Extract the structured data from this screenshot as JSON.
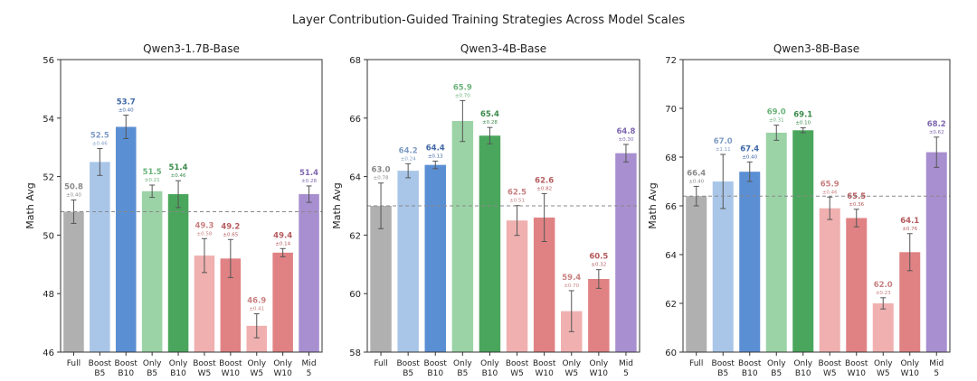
{
  "figure_title": "Layer Contribution-Guided Training Strategies Across Model Scales",
  "colors": {
    "Full": "#b0b0b0",
    "Boost B5": "#a9c6e8",
    "Boost B10": "#5b8fd4",
    "Only B5": "#9bd3a6",
    "Only B10": "#4aa65c",
    "Boost W5": "#f0b0b0",
    "Boost W10": "#e08284",
    "Only W5": "#f0b0b0",
    "Only W10": "#e08284",
    "Mid 5": "#a88fd0",
    "label_Full": "#8a8a8a",
    "label_Boost B5": "#7f9cc4",
    "label_Boost B10": "#3f67a6",
    "label_Only B5": "#6ab27a",
    "label_Only B10": "#3a8a4a",
    "label_Boost W5": "#c98080",
    "label_Boost W10": "#b55a5c",
    "label_Only W5": "#c98080",
    "label_Only W10": "#b55a5c",
    "label_Mid 5": "#7f68b0"
  },
  "chart_data": [
    {
      "type": "bar",
      "title": "Qwen3-1.7B-Base",
      "ylabel": "Math Avg",
      "xlabel": "",
      "categories": [
        "Full",
        "Boost\nB5",
        "Boost\nB10",
        "Only\nB5",
        "Only\nB10",
        "Boost\nW5",
        "Boost\nW10",
        "Only\nW5",
        "Only\nW10",
        "Mid\n5"
      ],
      "keys": [
        "Full",
        "Boost B5",
        "Boost B10",
        "Only B5",
        "Only B10",
        "Boost W5",
        "Boost W10",
        "Only W5",
        "Only W10",
        "Mid 5"
      ],
      "values": [
        50.8,
        52.5,
        53.7,
        51.5,
        51.4,
        49.3,
        49.2,
        46.9,
        49.4,
        51.4
      ],
      "errors": [
        0.4,
        0.46,
        0.4,
        0.21,
        0.46,
        0.58,
        0.65,
        0.41,
        0.14,
        0.28
      ],
      "value_labels": [
        "50.8",
        "52.5",
        "53.7",
        "51.5",
        "51.4",
        "49.3",
        "49.2",
        "46.9",
        "49.4",
        "51.4"
      ],
      "error_labels": [
        "±0.40",
        "±0.46",
        "±0.40",
        "±0.21",
        "±0.46",
        "±0.58",
        "±0.65",
        "±0.41",
        "±0.14",
        "±0.28"
      ],
      "ylim": [
        46,
        56
      ],
      "yticks": [
        46,
        48,
        50,
        52,
        54,
        56
      ],
      "baseline": 50.8
    },
    {
      "type": "bar",
      "title": "Qwen3-4B-Base",
      "ylabel": "Math Avg",
      "xlabel": "",
      "categories": [
        "Full",
        "Boost\nB5",
        "Boost\nB10",
        "Only\nB5",
        "Only\nB10",
        "Boost\nW5",
        "Boost\nW10",
        "Only\nW5",
        "Only\nW10",
        "Mid\n5"
      ],
      "keys": [
        "Full",
        "Boost B5",
        "Boost B10",
        "Only B5",
        "Only B10",
        "Boost W5",
        "Boost W10",
        "Only W5",
        "Only W10",
        "Mid 5"
      ],
      "values": [
        63.0,
        64.2,
        64.4,
        65.9,
        65.4,
        62.5,
        62.6,
        59.4,
        60.5,
        64.8
      ],
      "errors": [
        0.78,
        0.24,
        0.13,
        0.7,
        0.28,
        0.51,
        0.82,
        0.7,
        0.32,
        0.3
      ],
      "value_labels": [
        "63.0",
        "64.2",
        "64.4",
        "65.9",
        "65.4",
        "62.5",
        "62.6",
        "59.4",
        "60.5",
        "64.8"
      ],
      "error_labels": [
        "±0.78",
        "±0.24",
        "±0.13",
        "±0.70",
        "±0.28",
        "±0.51",
        "±0.82",
        "±0.70",
        "±0.32",
        "±0.30"
      ],
      "ylim": [
        58,
        68
      ],
      "yticks": [
        58,
        60,
        62,
        64,
        66,
        68
      ],
      "baseline": 63.0
    },
    {
      "type": "bar",
      "title": "Qwen3-8B-Base",
      "ylabel": "Math Avg",
      "xlabel": "",
      "categories": [
        "Full",
        "Boost\nB5",
        "Boost\nB10",
        "Only\nB5",
        "Only\nB10",
        "Boost\nW5",
        "Boost\nW10",
        "Only\nW5",
        "Only\nW10",
        "Mid\n5"
      ],
      "keys": [
        "Full",
        "Boost B5",
        "Boost B10",
        "Only B5",
        "Only B10",
        "Boost W5",
        "Boost W10",
        "Only W5",
        "Only W10",
        "Mid 5"
      ],
      "values": [
        66.4,
        67.0,
        67.4,
        69.0,
        69.1,
        65.9,
        65.5,
        62.0,
        64.1,
        68.2
      ],
      "errors": [
        0.4,
        1.11,
        0.4,
        0.31,
        0.1,
        0.46,
        0.36,
        0.23,
        0.76,
        0.62
      ],
      "value_labels": [
        "66.4",
        "67.0",
        "67.4",
        "69.0",
        "69.1",
        "65.9",
        "65.5",
        "62.0",
        "64.1",
        "68.2"
      ],
      "error_labels": [
        "±0.40",
        "±1.11",
        "±0.40",
        "±0.31",
        "±0.10",
        "±0.46",
        "±0.36",
        "±0.23",
        "±0.76",
        "±0.62"
      ],
      "ylim": [
        60,
        72
      ],
      "yticks": [
        60,
        62,
        64,
        66,
        68,
        70,
        72
      ],
      "baseline": 66.4
    }
  ]
}
